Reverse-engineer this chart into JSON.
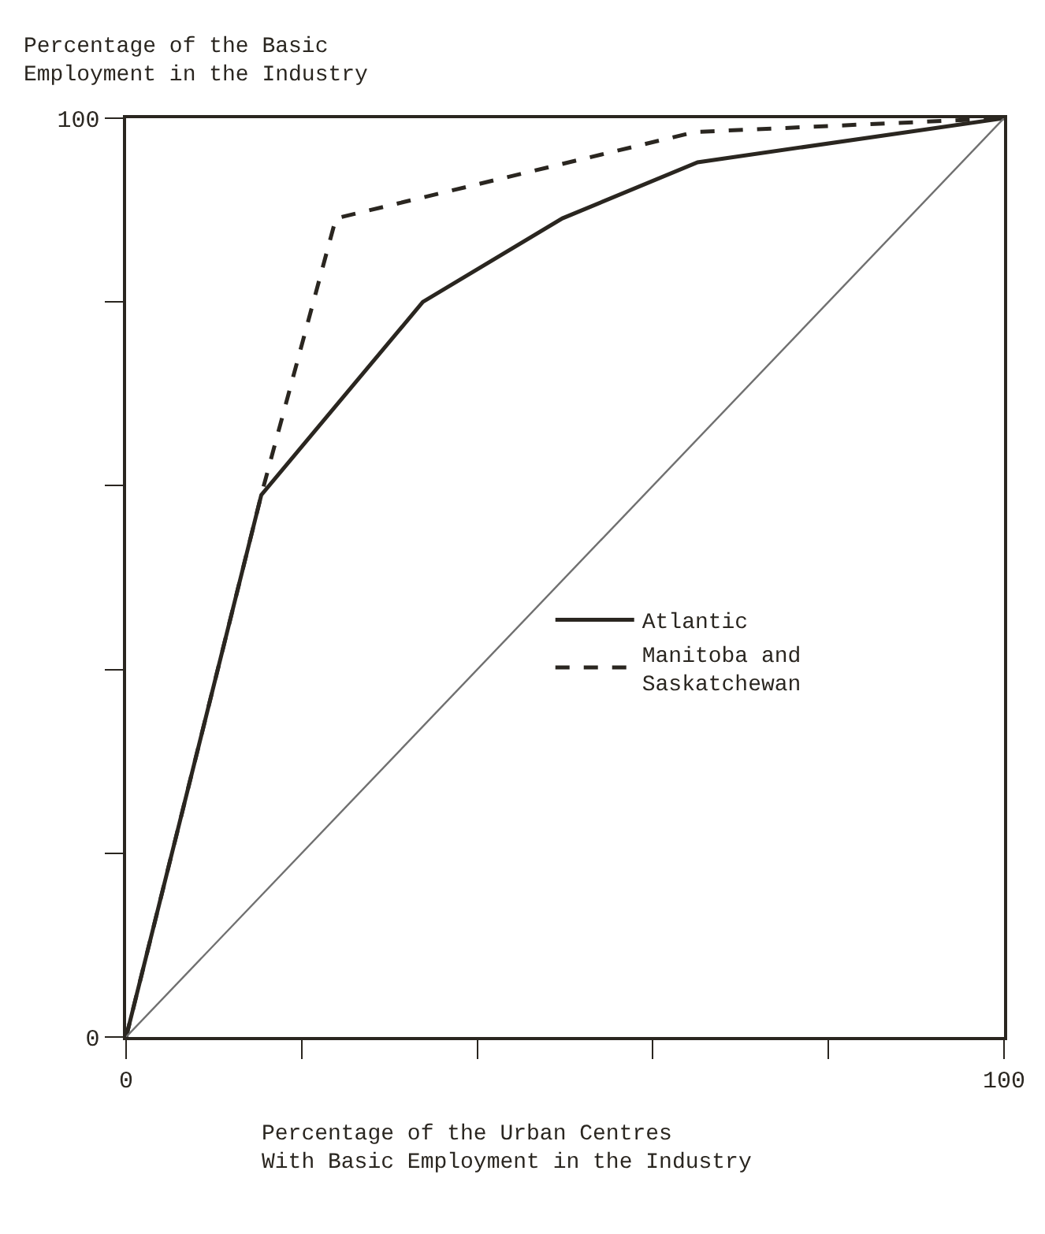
{
  "chart_data": {
    "type": "line",
    "ylabel": "Percentage of the Basic\nEmployment in the Industry",
    "xlabel": "Percentage of the Urban Centres\nWith Basic Employment in the Industry",
    "x": [
      0,
      15.4,
      33.8,
      49.7,
      65.1,
      100
    ],
    "series": [
      {
        "name": "Atlantic",
        "color": "#2a2620",
        "line_style": "solid",
        "values": [
          0,
          59,
          80,
          89.1,
          95.2,
          100
        ]
      },
      {
        "name": "Manitoba and\nSaskatchewan",
        "color": "#2a2620",
        "line_style": "dashed",
        "x": [
          0,
          15.4,
          23.9,
          64.8,
          100
        ],
        "values": [
          0,
          59,
          89.1,
          98.5,
          100
        ]
      },
      {
        "color": "#707070",
        "line_style": "solid",
        "x": [
          0,
          100
        ],
        "values": [
          0,
          100
        ]
      }
    ],
    "xlim": [
      0,
      100
    ],
    "ylim": [
      0,
      100
    ],
    "xticks": [
      0,
      {
        "value": 20,
        "label": null
      },
      {
        "value": 40,
        "label": null
      },
      {
        "value": 60,
        "label": null
      },
      {
        "value": 80,
        "label": null
      },
      100
    ],
    "yticks": [
      0,
      {
        "value": 20,
        "label": null
      },
      {
        "value": 40,
        "label": null
      },
      {
        "value": 60,
        "label": null
      },
      {
        "value": 80,
        "label": null
      },
      100
    ],
    "legend": "center right"
  }
}
